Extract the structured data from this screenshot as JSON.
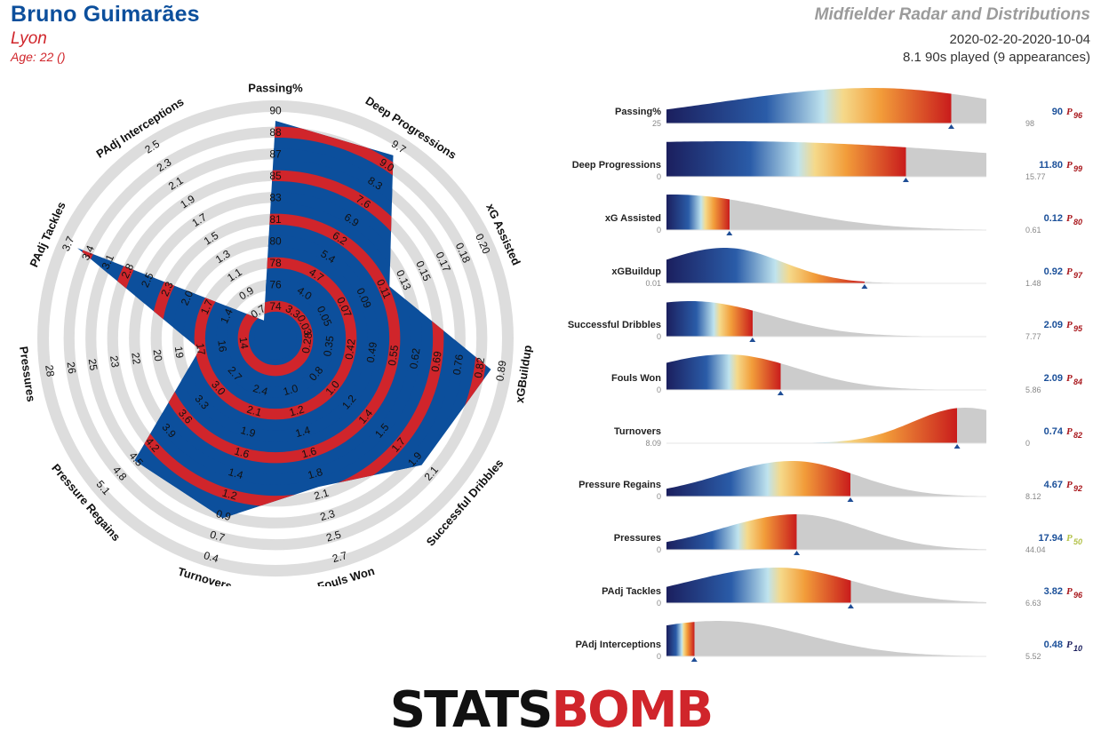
{
  "header": {
    "player_name": "Bruno Guimarães",
    "team": "Lyon",
    "age": "Age: 22 ()",
    "title": "Midfielder Radar and Distributions",
    "date_range": "2020-02-20-2020-10-04",
    "minutes": "8.1 90s played (9 appearances)"
  },
  "logo": {
    "part1": "STATS",
    "part2": "BOMB"
  },
  "colors": {
    "blue": "#0c4f9c",
    "red": "#d0252b",
    "ring_grey": "#dddddd",
    "dist_grey": "#cccccc",
    "dist_dark": "#1b1f5e",
    "dist_mid": "#f5d98a",
    "dist_high": "#c91c1c"
  },
  "chart_data": [
    {
      "type": "radar",
      "title": "",
      "axes": [
        {
          "name": "Passing%",
          "ticks": [
            "74",
            "76",
            "78",
            "80",
            "81",
            "83",
            "85",
            "87",
            "88",
            "90"
          ],
          "min": 74,
          "max": 90,
          "value": 90
        },
        {
          "name": "Deep Progressions",
          "ticks": [
            "3.3",
            "4.0",
            "4.7",
            "5.4",
            "6.2",
            "6.9",
            "7.6",
            "8.3",
            "9.0",
            "9.7"
          ],
          "min": 3.3,
          "max": 9.7,
          "value": 11.8
        },
        {
          "name": "xG Assisted",
          "ticks": [
            "0.03",
            "0.05",
            "0.07",
            "0.09",
            "0.11",
            "0.13",
            "0.15",
            "0.17",
            "0.18",
            "0.20"
          ],
          "min": 0.03,
          "max": 0.2,
          "value": 0.12
        },
        {
          "name": "xGBuildup",
          "ticks": [
            "0.28",
            "0.35",
            "0.42",
            "0.49",
            "0.55",
            "0.62",
            "0.69",
            "0.76",
            "0.82",
            "0.89"
          ],
          "min": 0.28,
          "max": 0.89,
          "value": 0.92
        },
        {
          "name": "Successful Dribbles",
          "ticks": [
            "0.8",
            "1.0",
            "1.2",
            "1.4",
            "1.5",
            "1.7",
            "1.9",
            "2.1"
          ],
          "min": 0.6,
          "max": 2.3,
          "value": 2.09
        },
        {
          "name": "Fouls Won",
          "ticks": [
            "1.0",
            "1.2",
            "1.4",
            "1.6",
            "1.8",
            "2.1",
            "2.3",
            "2.5",
            "2.7"
          ],
          "min": 0.8,
          "max": 2.7,
          "value": 2.09
        },
        {
          "name": "Turnovers",
          "ticks": [
            "2.4",
            "2.1",
            "1.9",
            "1.6",
            "1.4",
            "1.2",
            "0.9",
            "0.7",
            "0.4"
          ],
          "min": 2.6,
          "max": 0.4,
          "value": 0.74
        },
        {
          "name": "Pressure Regains",
          "ticks": [
            "2.7",
            "3.0",
            "3.3",
            "3.6",
            "3.9",
            "4.2",
            "4.5",
            "4.8",
            "5.1"
          ],
          "min": 2.4,
          "max": 5.1,
          "value": 4.67
        },
        {
          "name": "Pressures",
          "ticks": [
            "14",
            "16",
            "17",
            "19",
            "20",
            "22",
            "23",
            "25",
            "26",
            "28"
          ],
          "min": 14,
          "max": 28,
          "value": 17.94
        },
        {
          "name": "PAdj Tackles",
          "ticks": [
            "1.4",
            "1.7",
            "2.0",
            "2.3",
            "2.5",
            "2.8",
            "3.1",
            "3.4",
            "3.7"
          ],
          "min": 1.1,
          "max": 3.7,
          "value": 3.82
        },
        {
          "name": "PAdj Interceptions",
          "ticks": [
            "0.7",
            "0.9",
            "1.1",
            "1.3",
            "1.5",
            "1.7",
            "1.9",
            "2.1",
            "2.3",
            "2.5"
          ],
          "min": 0.7,
          "max": 2.5,
          "value": 0.48
        }
      ]
    },
    {
      "type": "area",
      "title": "",
      "metrics": [
        {
          "name": "Passing%",
          "min_label": "25",
          "max_label": "98",
          "value": "90",
          "percentile": "96",
          "marker": 90,
          "dmin": 25,
          "dmax": 98,
          "x0": 72,
          "span": 30,
          "cut": 96,
          "pct_color": "#a8161b"
        },
        {
          "name": "Deep Progressions",
          "min_label": "0",
          "max_label": "15.77",
          "value": "11.80",
          "percentile": "99",
          "marker": 11.8,
          "dmin": 0,
          "dmax": 15.77,
          "x0": 3.2,
          "span": 14,
          "cut": 99,
          "pct_color": "#a8161b"
        },
        {
          "name": "xG Assisted",
          "min_label": "0",
          "max_label": "0.61",
          "value": "0.12",
          "percentile": "80",
          "marker": 0.12,
          "dmin": 0,
          "dmax": 0.61,
          "x0": 0.012,
          "span": 0.2,
          "cut": 80,
          "pct_color": "#a8161b"
        },
        {
          "name": "xGBuildup",
          "min_label": "0.01",
          "max_label": "1.48",
          "value": "0.92",
          "percentile": "97",
          "marker": 0.92,
          "dmin": 0.01,
          "dmax": 1.48,
          "x0": 0.28,
          "span": 0.26,
          "cut": 97,
          "pct_color": "#a8161b"
        },
        {
          "name": "Successful Dribbles",
          "min_label": "0",
          "max_label": "7.77",
          "value": "2.09",
          "percentile": "95",
          "marker": 2.09,
          "dmin": 0,
          "dmax": 7.77,
          "x0": 0.6,
          "span": 1.9,
          "cut": 95,
          "pct_color": "#a8161b"
        },
        {
          "name": "Fouls Won",
          "min_label": "0",
          "max_label": "5.86",
          "value": "2.09",
          "percentile": "84",
          "marker": 2.09,
          "dmin": 0,
          "dmax": 5.86,
          "x0": 1.1,
          "span": 1.3,
          "cut": 84,
          "pct_color": "#a8161b"
        },
        {
          "name": "Turnovers",
          "min_label": "8.09",
          "max_label": "0",
          "value": "0.74",
          "percentile": "82",
          "marker": 0.74,
          "dmin": 8.09,
          "dmax": 0,
          "x0": 0.55,
          "span": 1.3,
          "cut": 82,
          "pct_color": "#a8161b"
        },
        {
          "name": "Pressure Regains",
          "min_label": "0",
          "max_label": "8.12",
          "value": "4.67",
          "percentile": "92",
          "marker": 4.67,
          "dmin": 0,
          "dmax": 8.12,
          "x0": 3.2,
          "span": 1.6,
          "cut": 92,
          "pct_color": "#a8161b"
        },
        {
          "name": "Pressures",
          "min_label": "0",
          "max_label": "44.04",
          "value": "17.94",
          "percentile": "50",
          "marker": 17.94,
          "dmin": 0,
          "dmax": 44.04,
          "x0": 18,
          "span": 9,
          "cut": 50,
          "pct_color": "#b3c24a"
        },
        {
          "name": "PAdj Tackles",
          "min_label": "0",
          "max_label": "6.63",
          "value": "3.82",
          "percentile": "96",
          "marker": 3.82,
          "dmin": 0,
          "dmax": 6.63,
          "x0": 2.3,
          "span": 1.6,
          "cut": 96,
          "pct_color": "#a8161b"
        },
        {
          "name": "PAdj Interceptions",
          "min_label": "0",
          "max_label": "5.52",
          "value": "0.48",
          "percentile": "10",
          "marker": 0.48,
          "dmin": 0,
          "dmax": 5.52,
          "x0": 0.9,
          "span": 1.5,
          "cut": 10,
          "pct_color": "#1b1f5e"
        }
      ]
    }
  ]
}
